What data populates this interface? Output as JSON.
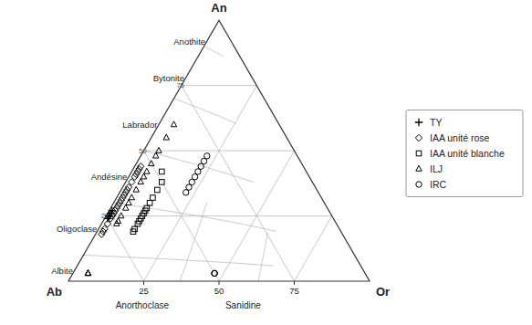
{
  "chart_data": {
    "type": "ternary",
    "components": [
      "An",
      "Ab",
      "Or"
    ],
    "ticks": [
      25,
      50,
      75
    ],
    "grid": true,
    "an_boundaries": [
      10,
      30,
      50,
      70,
      90
    ],
    "or_boundaries": [
      37,
      63
    ],
    "field_labels": [
      {
        "text": "Anothite",
        "an": 92,
        "ab": 7,
        "or": 1
      },
      {
        "text": "Bytonite",
        "an": 78,
        "ab": 21,
        "or": 1
      },
      {
        "text": "Labrador",
        "an": 60,
        "ab": 39,
        "or": 1
      },
      {
        "text": "Andésine",
        "an": 40,
        "ab": 59,
        "or": 1
      },
      {
        "text": "Oligoclase",
        "an": 20,
        "ab": 79,
        "or": 1
      },
      {
        "text": "Albite",
        "an": 4,
        "ab": 95,
        "or": 1
      }
    ],
    "iso_labels": [
      {
        "text": "75",
        "an": 75,
        "ab": 23,
        "or": 2
      },
      {
        "text": "50",
        "an": 50,
        "ab": 48,
        "or": 2
      },
      {
        "text": "25",
        "an": 25,
        "ab": 73,
        "or": 2
      }
    ],
    "annotations": [
      "Anorthoclase",
      "Sanidine"
    ],
    "legend": "right",
    "series": [
      {
        "name": "TY",
        "marker": "plus",
        "color": "#000000",
        "values": [
          [
            26,
            73,
            1
          ],
          [
            27,
            72,
            1
          ],
          [
            25,
            74,
            1
          ],
          [
            24,
            75,
            1
          ],
          [
            25,
            74,
            1
          ]
        ]
      },
      {
        "name": "IAA unité rose",
        "marker": "diamond",
        "color": "#000000",
        "values": [
          [
            44,
            54,
            2
          ],
          [
            43,
            55,
            2
          ],
          [
            42,
            56,
            2
          ],
          [
            41,
            57,
            2
          ],
          [
            40,
            58,
            2
          ],
          [
            38,
            60,
            2
          ],
          [
            36,
            62,
            2
          ],
          [
            35,
            63,
            2
          ],
          [
            34,
            64,
            2
          ],
          [
            33,
            65,
            2
          ],
          [
            32,
            66,
            2
          ],
          [
            31,
            67,
            2
          ],
          [
            30,
            68,
            2
          ],
          [
            29,
            69,
            2
          ],
          [
            28,
            70,
            2
          ],
          [
            27,
            71,
            2
          ],
          [
            26,
            72,
            2
          ],
          [
            25,
            73,
            2
          ],
          [
            24,
            74,
            2
          ],
          [
            22,
            76,
            2
          ],
          [
            20,
            78,
            2
          ],
          [
            19,
            79,
            2
          ],
          [
            18,
            80,
            2
          ]
        ]
      },
      {
        "name": "IAA unité blanche",
        "marker": "square",
        "color": "#000000",
        "values": [
          [
            42,
            48,
            10
          ],
          [
            38,
            50,
            12
          ],
          [
            35,
            53,
            12
          ],
          [
            32,
            56,
            12
          ],
          [
            30,
            58,
            12
          ],
          [
            28,
            60,
            12
          ],
          [
            27,
            61,
            12
          ],
          [
            26,
            62,
            12
          ],
          [
            25,
            63,
            12
          ],
          [
            24,
            64,
            12
          ],
          [
            23,
            65,
            12
          ],
          [
            22,
            66,
            12
          ],
          [
            20,
            68,
            12
          ],
          [
            19,
            69,
            12
          ]
        ]
      },
      {
        "name": "ILJ",
        "marker": "triangle",
        "color": "#000000",
        "values": [
          [
            60,
            35,
            5
          ],
          [
            55,
            40,
            5
          ],
          [
            50,
            45,
            5
          ],
          [
            48,
            47,
            5
          ],
          [
            45,
            50,
            5
          ],
          [
            42,
            53,
            5
          ],
          [
            40,
            55,
            5
          ],
          [
            38,
            57,
            5
          ],
          [
            35,
            60,
            5
          ],
          [
            32,
            63,
            5
          ],
          [
            30,
            65,
            5
          ],
          [
            28,
            67,
            5
          ],
          [
            25,
            70,
            5
          ],
          [
            23,
            72,
            5
          ],
          [
            22,
            73,
            5
          ],
          [
            3,
            92,
            5
          ],
          [
            3,
            92,
            5
          ],
          [
            3,
            92,
            5
          ]
        ]
      },
      {
        "name": "IRC",
        "marker": "circle",
        "color": "#000000",
        "values": [
          [
            48,
            30,
            22
          ],
          [
            46,
            32,
            22
          ],
          [
            44,
            34,
            22
          ],
          [
            42,
            36,
            22
          ],
          [
            40,
            38,
            22
          ],
          [
            38,
            40,
            22
          ],
          [
            36,
            42,
            22
          ],
          [
            34,
            44,
            22
          ],
          [
            3,
            50,
            47
          ],
          [
            3,
            50,
            47
          ],
          [
            3,
            50,
            47
          ]
        ]
      }
    ]
  }
}
